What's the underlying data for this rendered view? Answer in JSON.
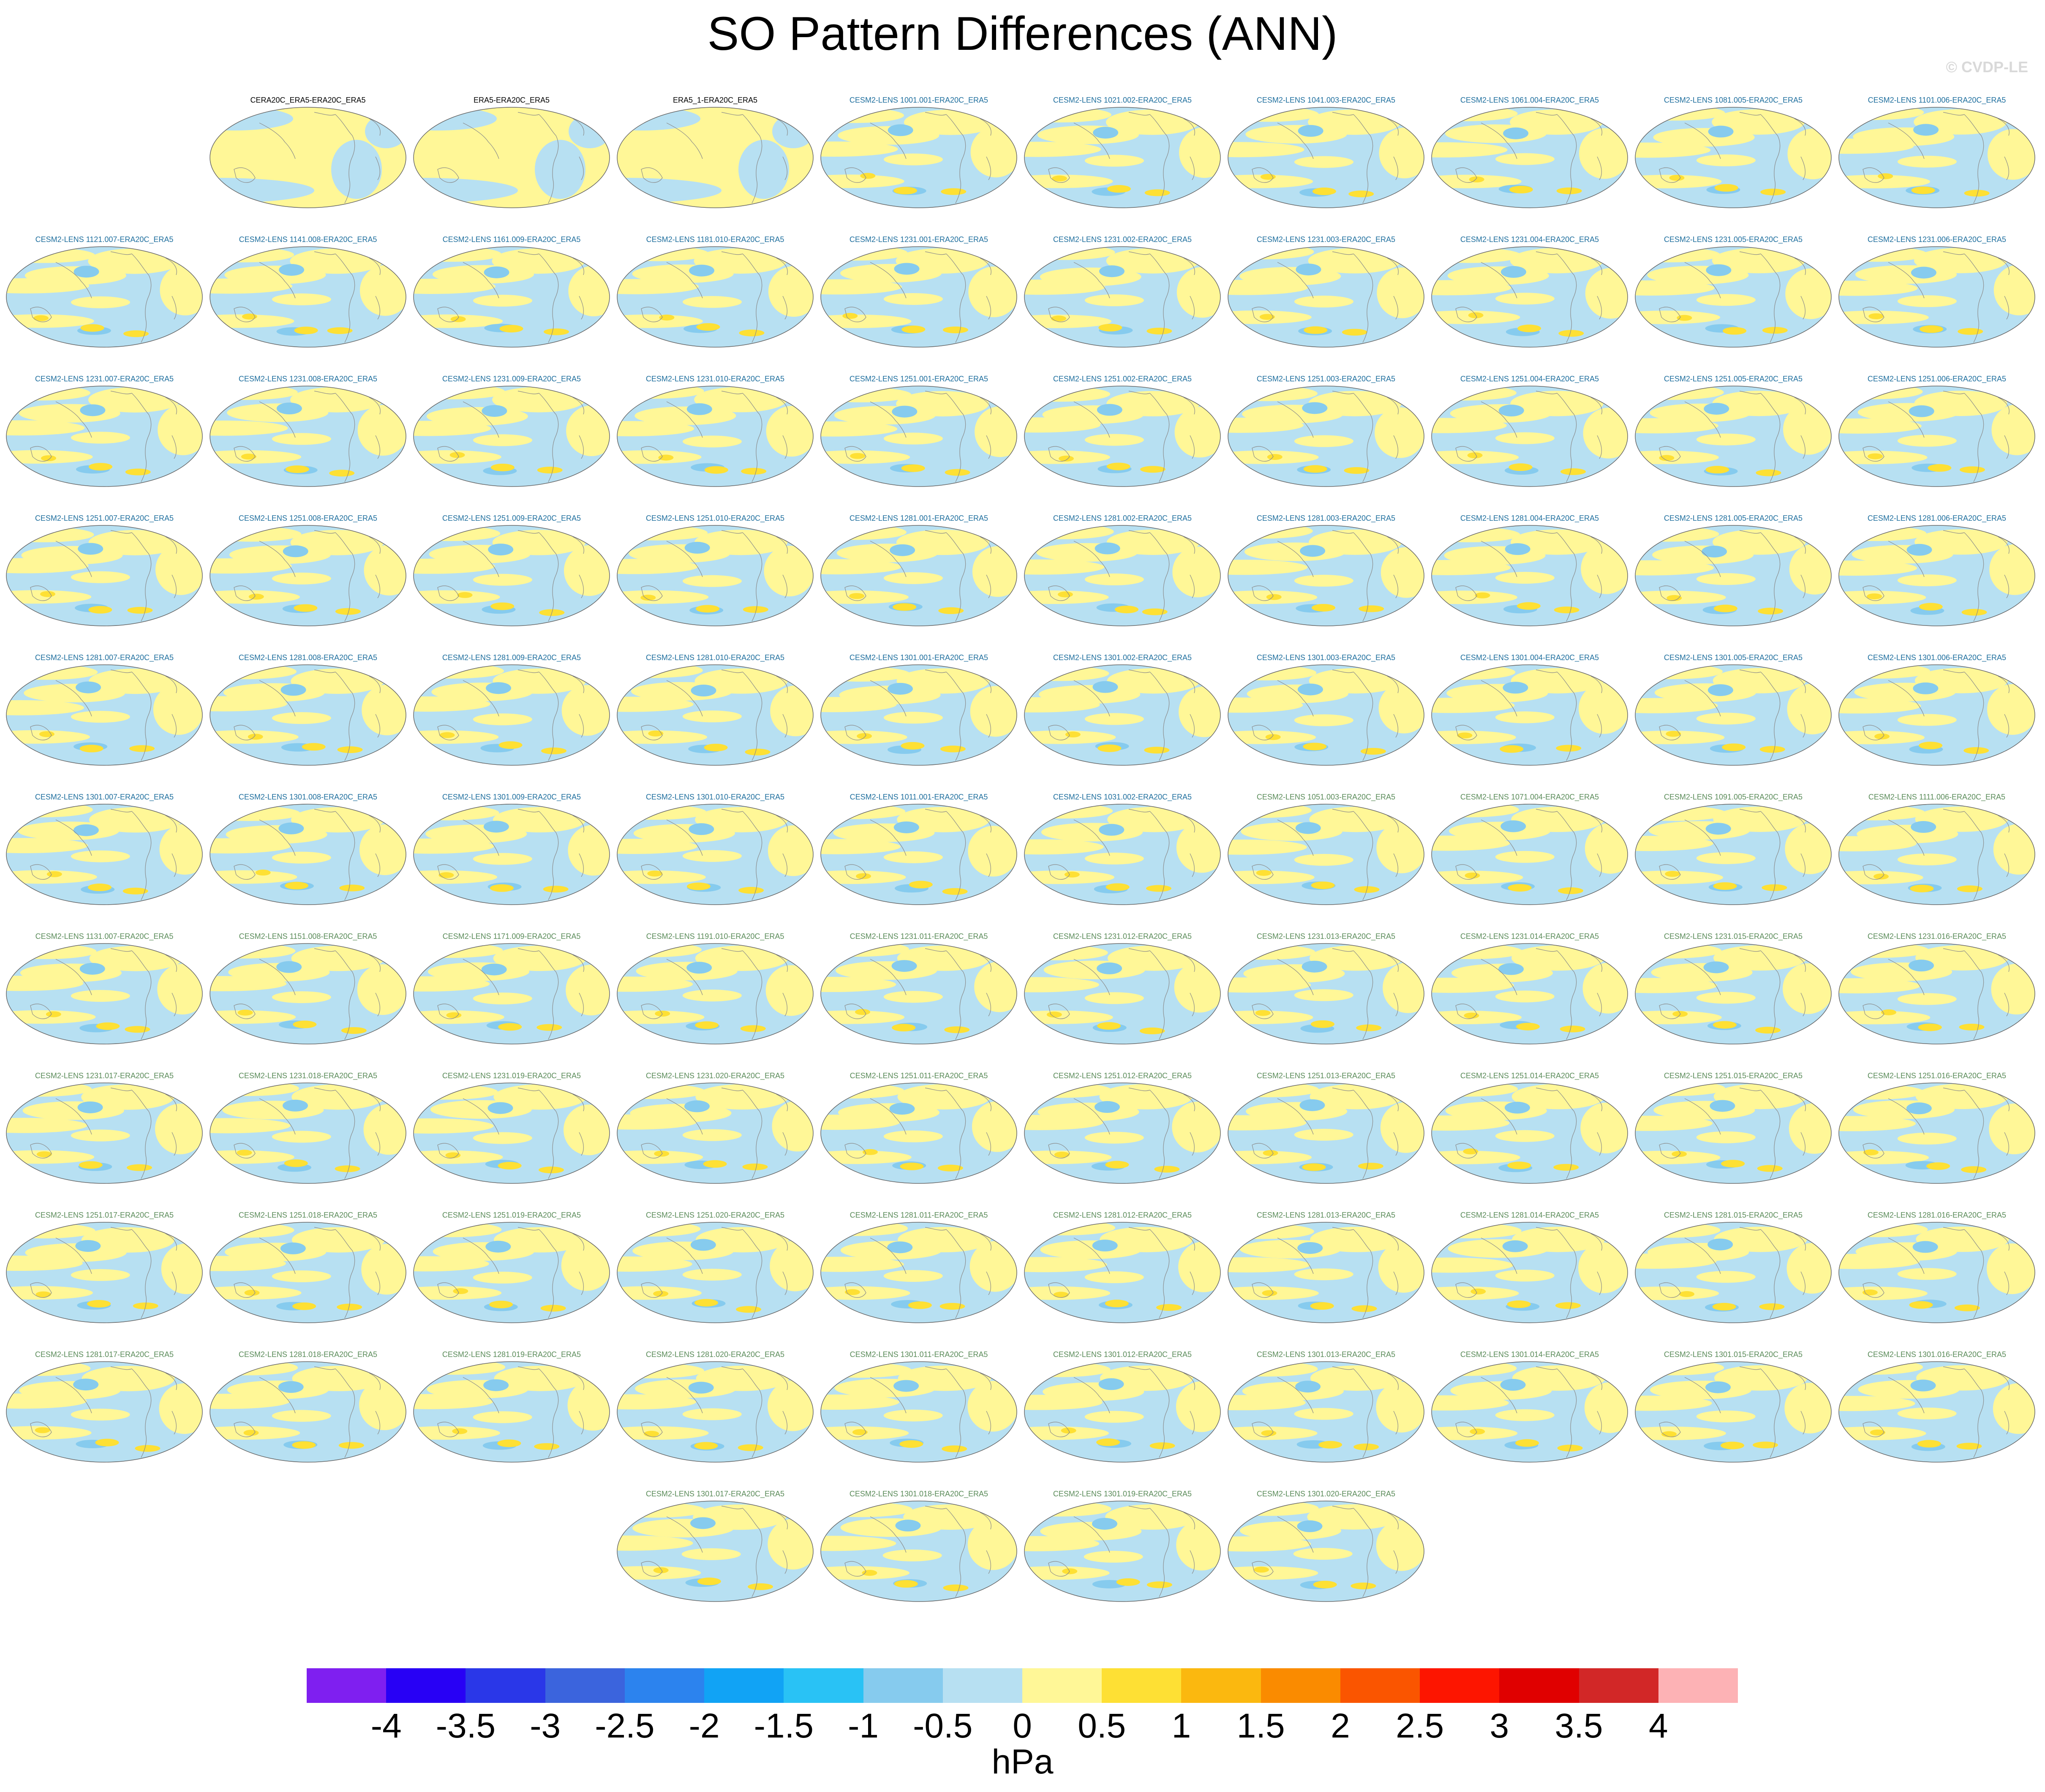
{
  "title": "SO Pattern Differences (ANN)",
  "watermark": "© CVDP-LE",
  "colors": {
    "obs_title": "#000000",
    "lens_title": "#1f6f9e",
    "lens2_title": "#5b8c5a"
  },
  "icons": {
    "map": "world-map-icon"
  },
  "chart_data": {
    "type": "heatmap",
    "title": "SO Pattern Differences (ANN)",
    "units": "hPa",
    "colorbar": {
      "label": "hPa",
      "ticks": [
        "-4",
        "-3.5",
        "-3",
        "-2.5",
        "-2",
        "-1.5",
        "-1",
        "-0.5",
        "0",
        "0.5",
        "1",
        "1.5",
        "2",
        "2.5",
        "3",
        "3.5",
        "4"
      ],
      "colors": [
        "#7f1ff0",
        "#2800f5",
        "#2a37e8",
        "#3b64dd",
        "#2c83ee",
        "#11a3f5",
        "#29c2f5",
        "#86cbee",
        "#b7e0f2",
        "#fff797",
        "#fee034",
        "#fbb80f",
        "#fa8b00",
        "#fa5500",
        "#fd1500",
        "#e00000",
        "#d22727",
        "#fdb2b5"
      ]
    },
    "panels": [
      "CERA20C_ERA5-ERA20C_ERA5",
      "ERA5-ERA20C_ERA5",
      "ERA5_1-ERA20C_ERA5",
      "CESM2-LENS 1001.001-ERA20C_ERA5",
      "CESM2-LENS 1021.002-ERA20C_ERA5",
      "CESM2-LENS 1041.003-ERA20C_ERA5",
      "CESM2-LENS 1061.004-ERA20C_ERA5",
      "CESM2-LENS 1081.005-ERA20C_ERA5",
      "CESM2-LENS 1101.006-ERA20C_ERA5",
      "CESM2-LENS 1121.007-ERA20C_ERA5",
      "CESM2-LENS 1141.008-ERA20C_ERA5",
      "CESM2-LENS 1161.009-ERA20C_ERA5",
      "CESM2-LENS 1181.010-ERA20C_ERA5",
      "CESM2-LENS 1231.001-ERA20C_ERA5",
      "CESM2-LENS 1231.002-ERA20C_ERA5",
      "CESM2-LENS 1231.003-ERA20C_ERA5",
      "CESM2-LENS 1231.004-ERA20C_ERA5",
      "CESM2-LENS 1231.005-ERA20C_ERA5",
      "CESM2-LENS 1231.006-ERA20C_ERA5",
      "CESM2-LENS 1231.007-ERA20C_ERA5",
      "CESM2-LENS 1231.008-ERA20C_ERA5",
      "CESM2-LENS 1231.009-ERA20C_ERA5",
      "CESM2-LENS 1231.010-ERA20C_ERA5",
      "CESM2-LENS 1251.001-ERA20C_ERA5",
      "CESM2-LENS 1251.002-ERA20C_ERA5",
      "CESM2-LENS 1251.003-ERA20C_ERA5",
      "CESM2-LENS 1251.004-ERA20C_ERA5",
      "CESM2-LENS 1251.005-ERA20C_ERA5",
      "CESM2-LENS 1251.006-ERA20C_ERA5",
      "CESM2-LENS 1251.007-ERA20C_ERA5",
      "CESM2-LENS 1251.008-ERA20C_ERA5",
      "CESM2-LENS 1251.009-ERA20C_ERA5",
      "CESM2-LENS 1251.010-ERA20C_ERA5",
      "CESM2-LENS 1281.001-ERA20C_ERA5",
      "CESM2-LENS 1281.002-ERA20C_ERA5",
      "CESM2-LENS 1281.003-ERA20C_ERA5",
      "CESM2-LENS 1281.004-ERA20C_ERA5",
      "CESM2-LENS 1281.005-ERA20C_ERA5",
      "CESM2-LENS 1281.006-ERA20C_ERA5",
      "CESM2-LENS 1281.007-ERA20C_ERA5",
      "CESM2-LENS 1281.008-ERA20C_ERA5",
      "CESM2-LENS 1281.009-ERA20C_ERA5",
      "CESM2-LENS 1281.010-ERA20C_ERA5",
      "CESM2-LENS 1301.001-ERA20C_ERA5",
      "CESM2-LENS 1301.002-ERA20C_ERA5",
      "CESM2-LENS 1301.003-ERA20C_ERA5",
      "CESM2-LENS 1301.004-ERA20C_ERA5",
      "CESM2-LENS 1301.005-ERA20C_ERA5",
      "CESM2-LENS 1301.006-ERA20C_ERA5",
      "CESM2-LENS 1301.007-ERA20C_ERA5",
      "CESM2-LENS 1301.008-ERA20C_ERA5",
      "CESM2-LENS 1301.009-ERA20C_ERA5",
      "CESM2-LENS 1301.010-ERA20C_ERA5",
      "CESM2-LENS 1011.001-ERA20C_ERA5",
      "CESM2-LENS 1031.002-ERA20C_ERA5",
      "CESM2-LENS 1051.003-ERA20C_ERA5",
      "CESM2-LENS 1071.004-ERA20C_ERA5",
      "CESM2-LENS 1091.005-ERA20C_ERA5",
      "CESM2-LENS 1111.006-ERA20C_ERA5",
      "CESM2-LENS 1131.007-ERA20C_ERA5",
      "CESM2-LENS 1151.008-ERA20C_ERA5",
      "CESM2-LENS 1171.009-ERA20C_ERA5",
      "CESM2-LENS 1191.010-ERA20C_ERA5",
      "CESM2-LENS 1231.011-ERA20C_ERA5",
      "CESM2-LENS 1231.012-ERA20C_ERA5",
      "CESM2-LENS 1231.013-ERA20C_ERA5",
      "CESM2-LENS 1231.014-ERA20C_ERA5",
      "CESM2-LENS 1231.015-ERA20C_ERA5",
      "CESM2-LENS 1231.016-ERA20C_ERA5",
      "CESM2-LENS 1231.017-ERA20C_ERA5",
      "CESM2-LENS 1231.018-ERA20C_ERA5",
      "CESM2-LENS 1231.019-ERA20C_ERA5",
      "CESM2-LENS 1231.020-ERA20C_ERA5",
      "CESM2-LENS 1251.011-ERA20C_ERA5",
      "CESM2-LENS 1251.012-ERA20C_ERA5",
      "CESM2-LENS 1251.013-ERA20C_ERA5",
      "CESM2-LENS 1251.014-ERA20C_ERA5",
      "CESM2-LENS 1251.015-ERA20C_ERA5",
      "CESM2-LENS 1251.016-ERA20C_ERA5",
      "CESM2-LENS 1251.017-ERA20C_ERA5",
      "CESM2-LENS 1251.018-ERA20C_ERA5",
      "CESM2-LENS 1251.019-ERA20C_ERA5",
      "CESM2-LENS 1251.020-ERA20C_ERA5",
      "CESM2-LENS 1281.011-ERA20C_ERA5",
      "CESM2-LENS 1281.012-ERA20C_ERA5",
      "CESM2-LENS 1281.013-ERA20C_ERA5",
      "CESM2-LENS 1281.014-ERA20C_ERA5",
      "CESM2-LENS 1281.015-ERA20C_ERA5",
      "CESM2-LENS 1281.016-ERA20C_ERA5",
      "CESM2-LENS 1281.017-ERA20C_ERA5",
      "CESM2-LENS 1281.018-ERA20C_ERA5",
      "CESM2-LENS 1281.019-ERA20C_ERA5",
      "CESM2-LENS 1281.020-ERA20C_ERA5",
      "CESM2-LENS 1301.011-ERA20C_ERA5",
      "CESM2-LENS 1301.012-ERA20C_ERA5",
      "CESM2-LENS 1301.013-ERA20C_ERA5",
      "CESM2-LENS 1301.014-ERA20C_ERA5",
      "CESM2-LENS 1301.015-ERA20C_ERA5",
      "CESM2-LENS 1301.016-ERA20C_ERA5",
      "CESM2-LENS 1301.017-ERA20C_ERA5",
      "CESM2-LENS 1301.018-ERA20C_ERA5",
      "CESM2-LENS 1301.019-ERA20C_ERA5",
      "CESM2-LENS 1301.020-ERA20C_ERA5"
    ]
  }
}
